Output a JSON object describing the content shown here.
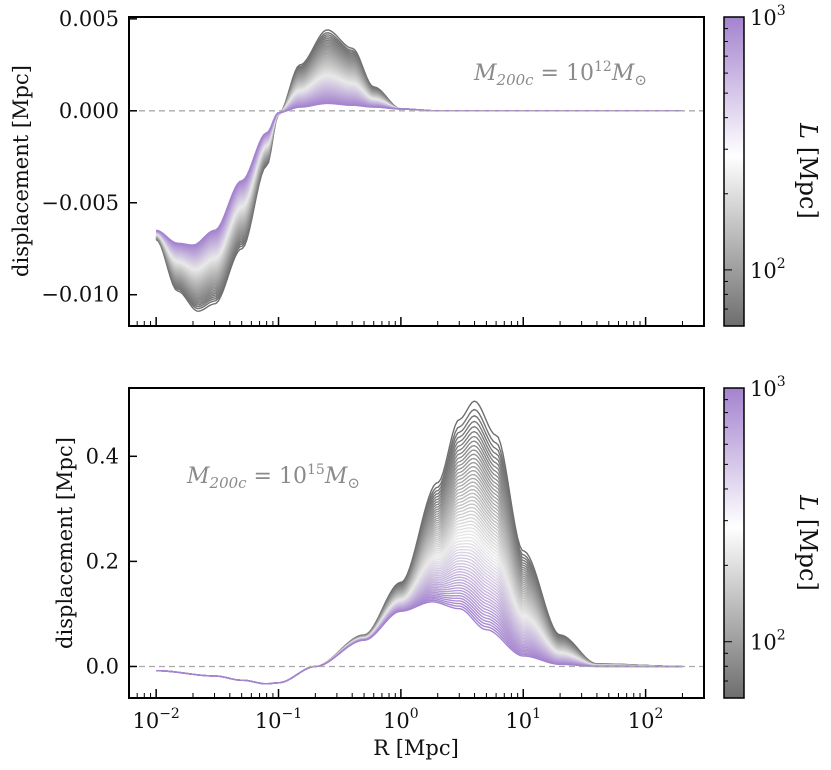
{
  "chart_data": [
    {
      "type": "line",
      "panel": "top",
      "xscale": "log",
      "xlim": [
        0.006,
        300
      ],
      "ylim": [
        -0.0117,
        0.0051
      ],
      "ylabel": "displacement [Mpc]",
      "yticks": [
        {
          "value": 0.005,
          "label": "0.005"
        },
        {
          "value": 0.0,
          "label": "0.000"
        },
        {
          "value": -0.005,
          "label": "−0.005"
        },
        {
          "value": -0.01,
          "label": "−0.010"
        }
      ],
      "reference_line": {
        "y": 0,
        "style": "dashed",
        "color": "#aaaaaa"
      },
      "annotation": {
        "base": "M",
        "sub": "200c",
        "eq": " = 10",
        "sup": "12",
        "tail": "M",
        "tail_sub": "⊙"
      },
      "family": {
        "count": 60,
        "color_by": "L",
        "L_range": [
          60,
          1000
        ],
        "curve_extremes": [
          {
            "L": 60,
            "color": "#6e6e6e",
            "x": [
              0.01,
              0.015,
              0.022,
              0.03,
              0.05,
              0.08,
              0.1,
              0.15,
              0.25,
              0.4,
              0.6,
              1.0,
              2.0,
              200
            ],
            "y": [
              -0.007,
              -0.0098,
              -0.0109,
              -0.0105,
              -0.0075,
              -0.003,
              -0.0002,
              0.0025,
              0.0044,
              0.0034,
              0.0013,
              0.0001,
              0.0,
              0.0
            ]
          },
          {
            "L": 1000,
            "color": "#a483cf",
            "x": [
              0.01,
              0.015,
              0.02,
              0.03,
              0.05,
              0.08,
              0.1,
              0.15,
              0.25,
              0.4,
              0.6,
              1.0,
              2.0,
              200
            ],
            "y": [
              -0.0065,
              -0.0072,
              -0.0073,
              -0.0065,
              -0.0038,
              -0.0012,
              -0.0001,
              0.0002,
              0.0004,
              0.0003,
              0.0002,
              0.0001,
              0.0,
              0.0
            ]
          }
        ]
      }
    },
    {
      "type": "line",
      "panel": "bottom",
      "xscale": "log",
      "xlim": [
        0.006,
        300
      ],
      "ylim": [
        -0.06,
        0.53
      ],
      "ylabel": "displacement [Mpc]",
      "xlabel": "R [Mpc]",
      "yticks": [
        {
          "value": 0.4,
          "label": "0.4"
        },
        {
          "value": 0.2,
          "label": "0.2"
        },
        {
          "value": 0.0,
          "label": "0.0"
        }
      ],
      "xticks": [
        {
          "value": 0.01,
          "base": "10",
          "exp": "−2"
        },
        {
          "value": 0.1,
          "base": "10",
          "exp": "−1"
        },
        {
          "value": 1,
          "base": "10",
          "exp": "0"
        },
        {
          "value": 10,
          "base": "10",
          "exp": "1"
        },
        {
          "value": 100,
          "base": "10",
          "exp": "2"
        }
      ],
      "reference_line": {
        "y": 0,
        "style": "dashed",
        "color": "#aaaaaa"
      },
      "annotation": {
        "base": "M",
        "sub": "200c",
        "eq": " = 10",
        "sup": "15",
        "tail": "M",
        "tail_sub": "⊙"
      },
      "family": {
        "count": 60,
        "color_by": "L",
        "L_range": [
          60,
          1000
        ],
        "curve_extremes": [
          {
            "L": 60,
            "color": "#6e6e6e",
            "x": [
              0.01,
              0.03,
              0.05,
              0.08,
              0.1,
              0.2,
              0.5,
              1.0,
              2.0,
              3.0,
              4.0,
              6.0,
              10,
              20,
              40,
              200
            ],
            "y": [
              -0.008,
              -0.018,
              -0.026,
              -0.033,
              -0.031,
              0.0,
              0.06,
              0.16,
              0.35,
              0.47,
              0.505,
              0.44,
              0.22,
              0.06,
              0.005,
              0.0
            ]
          },
          {
            "L": 1000,
            "color": "#a483cf",
            "x": [
              0.01,
              0.03,
              0.05,
              0.08,
              0.1,
              0.2,
              0.5,
              1.0,
              1.8,
              3.0,
              5.0,
              10,
              20,
              40,
              200
            ],
            "y": [
              -0.008,
              -0.018,
              -0.026,
              -0.033,
              -0.031,
              0.0,
              0.05,
              0.105,
              0.123,
              0.11,
              0.07,
              0.02,
              0.004,
              0.0,
              0.0
            ]
          }
        ]
      }
    }
  ],
  "colorbar": {
    "label": "L [Mpc]",
    "scale": "log",
    "range": [
      60,
      1000
    ],
    "ticks": [
      {
        "value": 100,
        "base": "10",
        "exp": "2"
      },
      {
        "value": 1000,
        "base": "10",
        "exp": "3"
      }
    ],
    "colors": [
      "#6e6e6e",
      "#ffffff",
      "#a483cf"
    ]
  }
}
